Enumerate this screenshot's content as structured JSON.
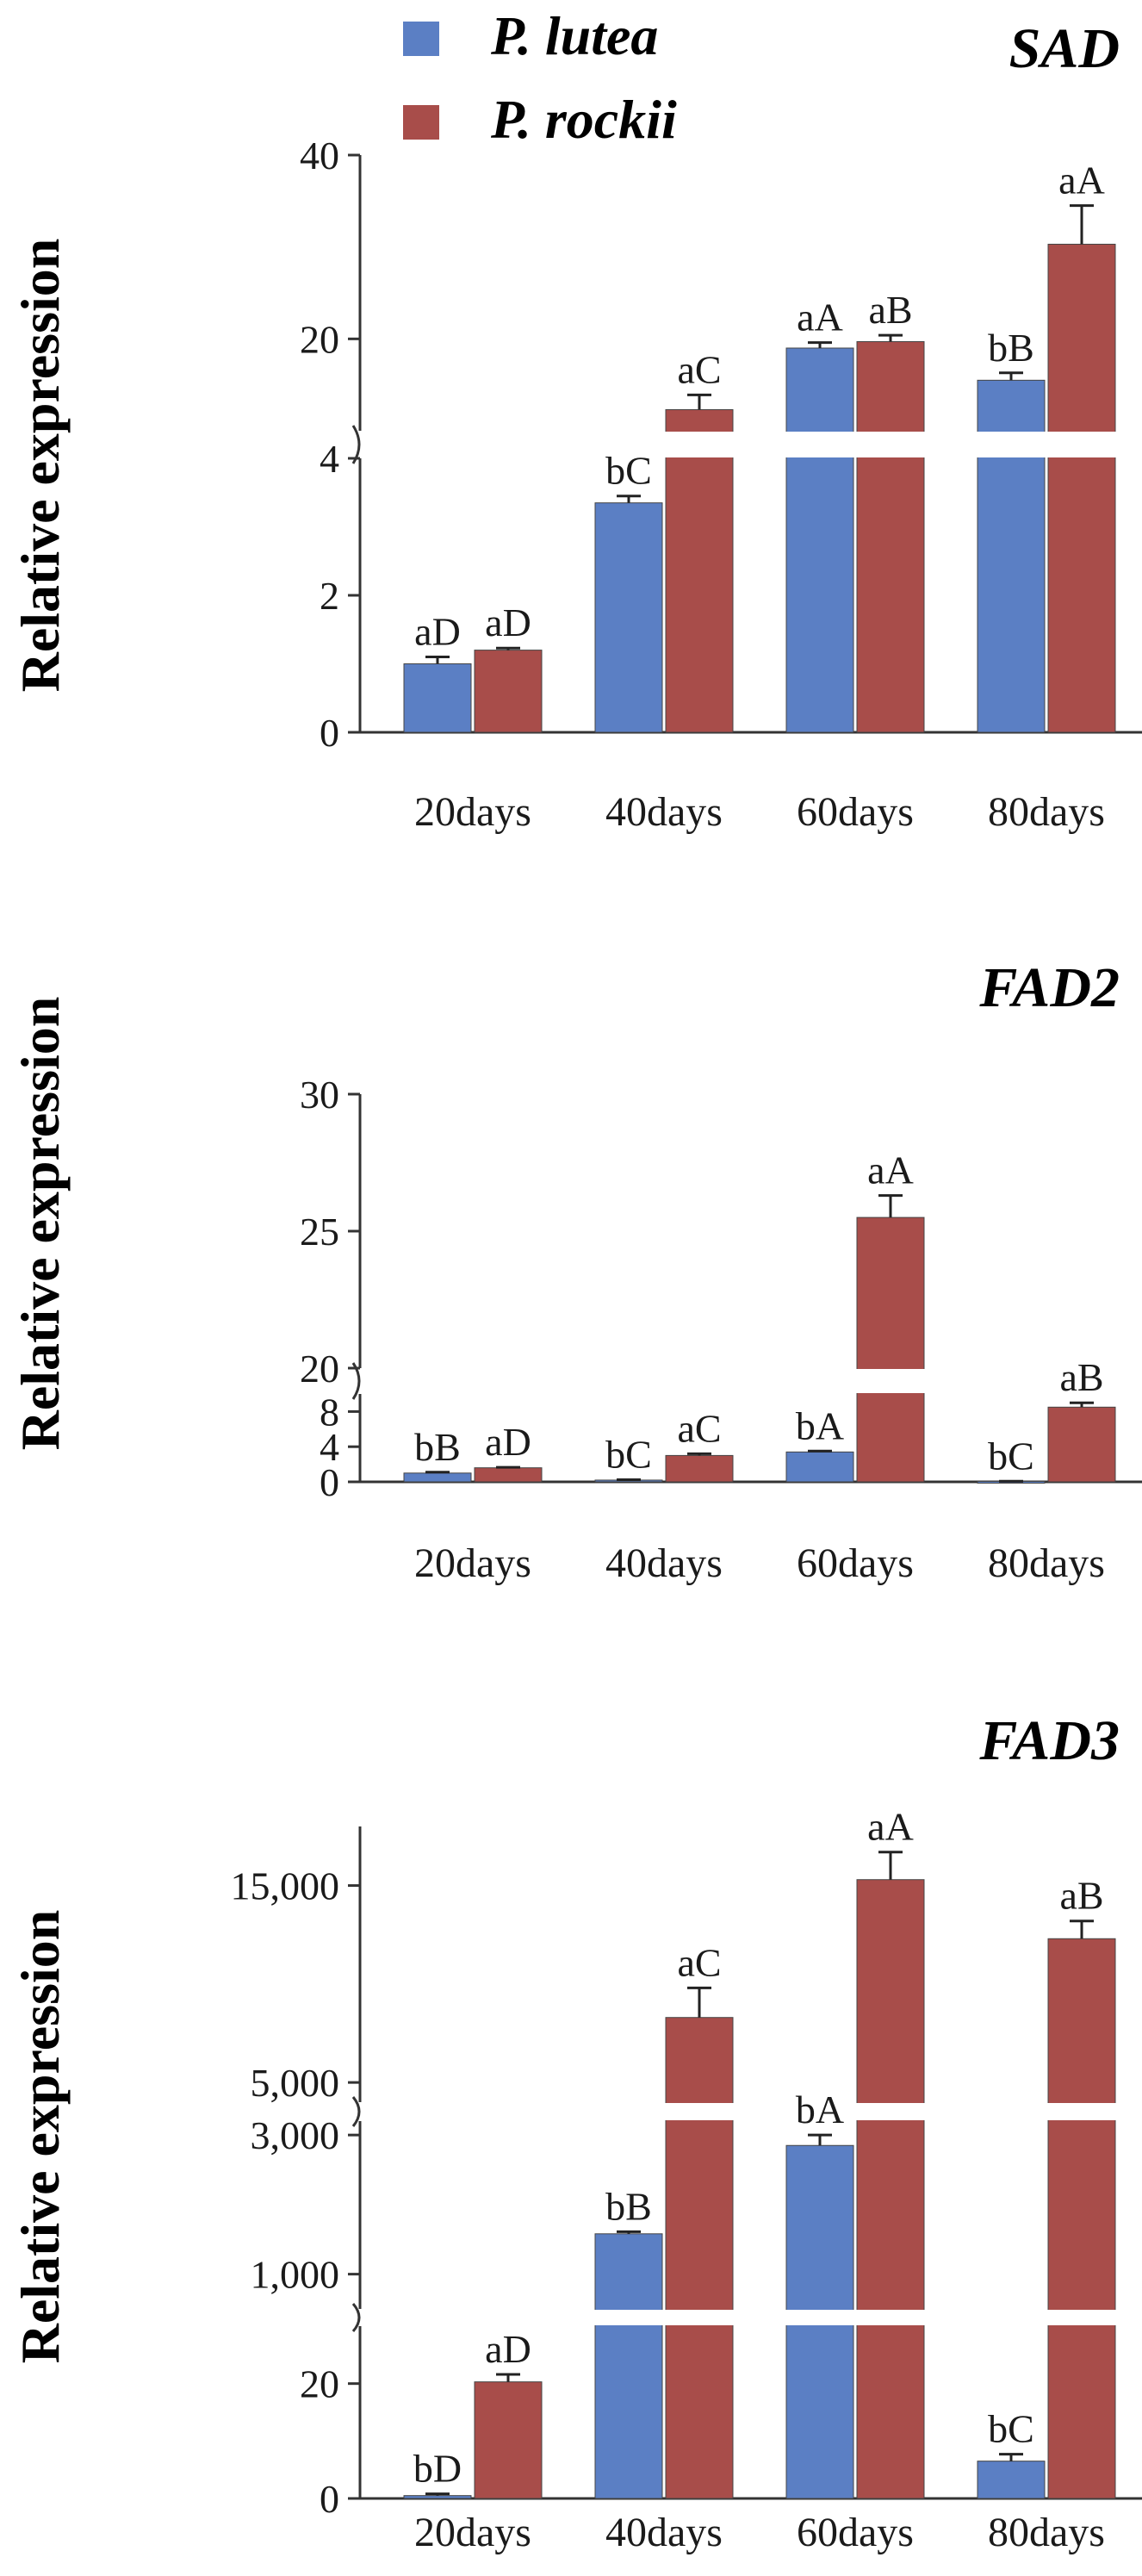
{
  "legend": [
    {
      "name": "P. lutea",
      "color": "#5B7FC4"
    },
    {
      "name": "P. rockii",
      "color": "#A84D4A"
    }
  ],
  "chart_data": [
    {
      "type": "bar",
      "title": "SAD",
      "ylabel": "Relative expression",
      "categories": [
        "20days",
        "40days",
        "60days",
        "80days"
      ],
      "axis_break": true,
      "segments": [
        {
          "range": [
            0,
            4
          ],
          "ticks": [
            0,
            2,
            4
          ]
        },
        {
          "range": [
            10,
            40
          ],
          "ticks": [
            20,
            40
          ]
        }
      ],
      "series": [
        {
          "name": "P. lutea",
          "color": "#5B7FC4",
          "values": [
            1.0,
            3.35,
            19.0,
            15.5
          ],
          "errors": [
            0.1,
            0.1,
            0.6,
            0.8
          ],
          "labels": [
            "aD",
            "bC",
            "aA",
            "bB"
          ]
        },
        {
          "name": "P. rockii",
          "color": "#A84D4A",
          "values": [
            1.2,
            12.3,
            19.7,
            30.3
          ],
          "errors": [
            0.03,
            1.6,
            0.7,
            4.2
          ],
          "labels": [
            "aD",
            "aC",
            "aB",
            "aA"
          ]
        }
      ]
    },
    {
      "type": "bar",
      "title": "FAD2",
      "ylabel": "Relative expression",
      "categories": [
        "20days",
        "40days",
        "60days",
        "80days"
      ],
      "axis_break": true,
      "segments": [
        {
          "range": [
            0,
            10
          ],
          "ticks": [
            0,
            4,
            8
          ]
        },
        {
          "range": [
            20,
            30
          ],
          "ticks": [
            20,
            25,
            30
          ]
        }
      ],
      "series": [
        {
          "name": "P. lutea",
          "color": "#5B7FC4",
          "values": [
            1.0,
            0.2,
            3.4,
            0.05
          ],
          "errors": [
            0.1,
            0.05,
            0.1,
            0.02
          ],
          "labels": [
            "bB",
            "bC",
            "bA",
            "bC"
          ]
        },
        {
          "name": "P. rockii",
          "color": "#A84D4A",
          "values": [
            1.6,
            3.0,
            25.5,
            8.5
          ],
          "errors": [
            0.05,
            0.2,
            0.8,
            0.5
          ],
          "labels": [
            "aD",
            "aC",
            "aA",
            "aB"
          ]
        }
      ]
    },
    {
      "type": "bar",
      "title": "FAD3",
      "ylabel": "Relative expression",
      "categories": [
        "20days",
        "40days",
        "60days",
        "80days"
      ],
      "axis_break": true,
      "segments": [
        {
          "range": [
            0,
            30
          ],
          "ticks": [
            0,
            20
          ]
        },
        {
          "range": [
            500,
            3200
          ],
          "ticks": [
            1000,
            3000
          ]
        },
        {
          "range": [
            4000,
            18000
          ],
          "ticks": [
            5000,
            15000
          ]
        }
      ],
      "series": [
        {
          "name": "P. lutea",
          "color": "#5B7FC4",
          "values": [
            0.5,
            1580,
            2850,
            6.5
          ],
          "errors": [
            0.3,
            30,
            150,
            1.2
          ],
          "labels": [
            "bD",
            "bB",
            "bA",
            "bC"
          ]
        },
        {
          "name": "P. rockii",
          "color": "#A84D4A",
          "values": [
            20.3,
            8300,
            15300,
            12300
          ],
          "errors": [
            1.3,
            1500,
            1400,
            900
          ],
          "labels": [
            "aD",
            "aC",
            "aA",
            "aB"
          ]
        }
      ]
    }
  ]
}
